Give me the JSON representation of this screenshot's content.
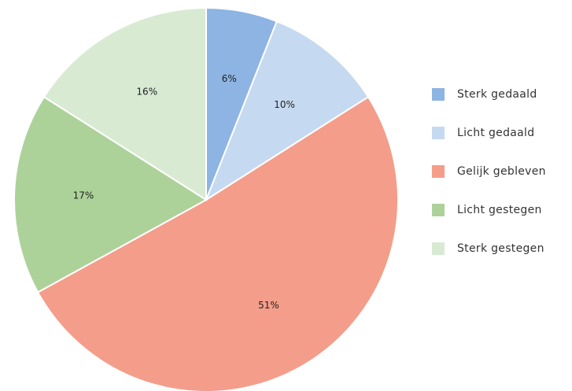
{
  "chart_data": {
    "type": "pie",
    "categories": [
      "Sterk gedaald",
      "Licht gedaald",
      "Gelijk gebleven",
      "Licht gestegen",
      "Sterk gestegen"
    ],
    "values": [
      6,
      10,
      51,
      17,
      16
    ],
    "value_labels": [
      "6%",
      "10%",
      "51%",
      "17%",
      "16%"
    ],
    "colors": [
      "#8db4e2",
      "#c5d9f1",
      "#f49d8a",
      "#acd29a",
      "#d8ebd2"
    ],
    "legend": "right"
  }
}
